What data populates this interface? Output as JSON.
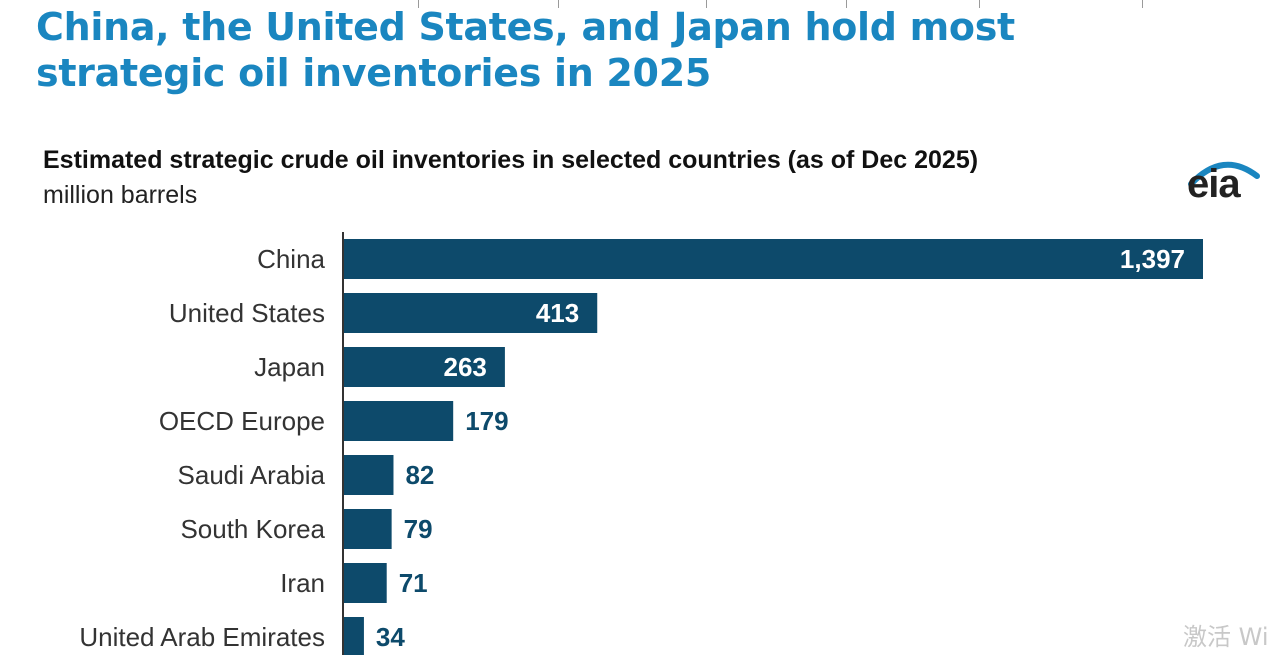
{
  "headline": "China, the United States, and Japan hold most strategic oil inventories in 2025",
  "logo": {
    "text": "eia",
    "icon": "eia-logo-icon",
    "arc_color": "#1a86c0"
  },
  "colors": {
    "headline": "#1a86c0",
    "bar": "#0d4a6b",
    "label_inside": "#ffffff",
    "label_outside": "#0d4a6b",
    "axis": "#333333"
  },
  "watermark": "激活 Wi",
  "chart_data": {
    "type": "bar",
    "orientation": "horizontal",
    "title": "Estimated strategic crude oil inventories in selected countries (as of Dec 2025)",
    "subtitle": "million barrels",
    "categories": [
      "China",
      "United States",
      "Japan",
      "OECD Europe",
      "Saudi Arabia",
      "South Korea",
      "Iran",
      "United Arab Emirates"
    ],
    "values": [
      1397,
      413,
      263,
      179,
      82,
      79,
      71,
      34
    ],
    "value_labels": [
      "1,397",
      "413",
      "263",
      "179",
      "82",
      "79",
      "71",
      "34"
    ],
    "xlim": [
      0,
      1397
    ],
    "grid": false,
    "legend": "none"
  }
}
